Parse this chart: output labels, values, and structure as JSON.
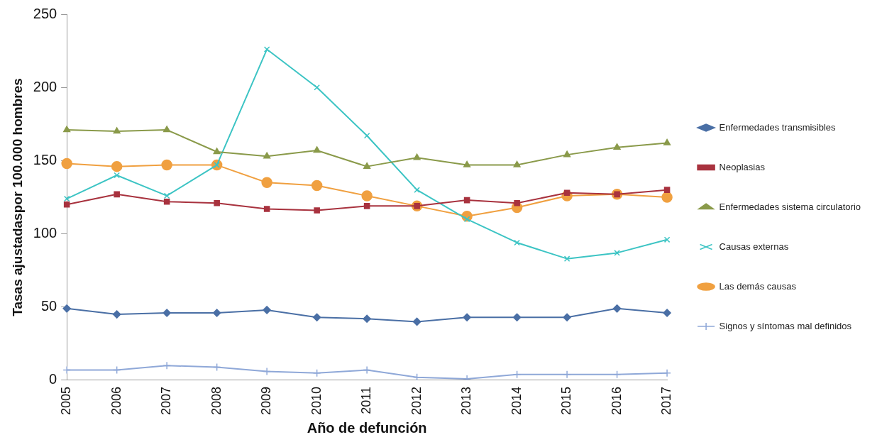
{
  "chart_data": {
    "type": "line",
    "xlabel": "Año de defunción",
    "ylabel": "Tasas ajustadaspor 100.000 hombres",
    "categories": [
      "2005",
      "2006",
      "2007",
      "2008",
      "2009",
      "2010",
      "2011",
      "2012",
      "2013",
      "2014",
      "2015",
      "2016",
      "2017"
    ],
    "ylim": [
      0,
      250
    ],
    "yticks": [
      0,
      50,
      100,
      150,
      200,
      250
    ],
    "grid": false,
    "legend": "right",
    "line_style": "solid",
    "series": [
      {
        "name": "Enfermedades transmisibles",
        "color": "#4a6fa5",
        "marker": "diamond",
        "values": [
          49,
          45,
          46,
          46,
          48,
          43,
          42,
          40,
          43,
          43,
          43,
          49,
          46
        ]
      },
      {
        "name": "Neoplasias",
        "color": "#a8323e",
        "marker": "square",
        "values": [
          120,
          127,
          122,
          121,
          117,
          116,
          119,
          119,
          123,
          121,
          128,
          127,
          130
        ]
      },
      {
        "name": "Enfermedades sistema circulatorio",
        "color": "#8a9a4a",
        "marker": "triangle",
        "values": [
          171,
          170,
          171,
          156,
          153,
          157,
          146,
          152,
          147,
          147,
          154,
          159,
          162
        ]
      },
      {
        "name": "Causas externas",
        "color": "#3cc4c4",
        "marker": "cross",
        "values": [
          124,
          140,
          126,
          147,
          226,
          200,
          167,
          130,
          110,
          94,
          83,
          87,
          96
        ]
      },
      {
        "name": "Las demás causas",
        "color": "#f0a040",
        "marker": "circle",
        "values": [
          148,
          146,
          147,
          147,
          135,
          133,
          126,
          119,
          112,
          118,
          126,
          127,
          125
        ]
      },
      {
        "name": "Signos y síntomas mal definidos",
        "color": "#8fa8d8",
        "marker": "cross",
        "values": [
          7,
          7,
          10,
          9,
          6,
          5,
          7,
          2,
          1,
          4,
          4,
          4,
          5
        ]
      }
    ]
  }
}
